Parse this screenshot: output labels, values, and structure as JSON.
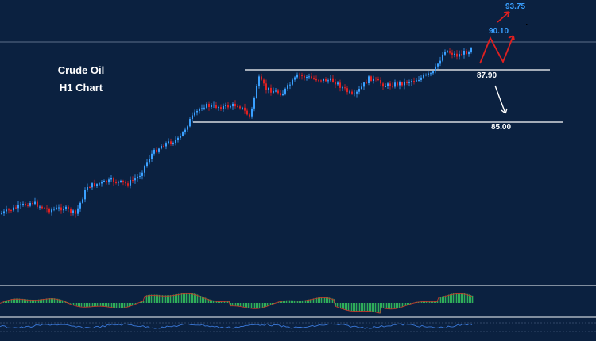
{
  "chart_data": {
    "type": "candlestick",
    "title_line1": "Crude Oil",
    "title_line2": "H1 Chart",
    "levels": [
      {
        "value": 87.9,
        "label": "87.90"
      },
      {
        "value": 85.0,
        "label": "85.00"
      }
    ],
    "targets": [
      {
        "value": 90.1,
        "label": "90.10"
      },
      {
        "value": 93.75,
        "label": "93.75"
      }
    ],
    "ylim": [
      80,
      95
    ],
    "colors": {
      "background": "#0b2140",
      "up_candle": "#3aa0ff",
      "down_candle": "#e02020",
      "level_line": "#ffffff",
      "target_label": "#3aa0ff",
      "target_arrow": "#e02020",
      "down_arrow": "#ffffff",
      "histogram": "#2fae5a",
      "signal": "#c0392b",
      "oscillator": "#3a78d8"
    }
  }
}
